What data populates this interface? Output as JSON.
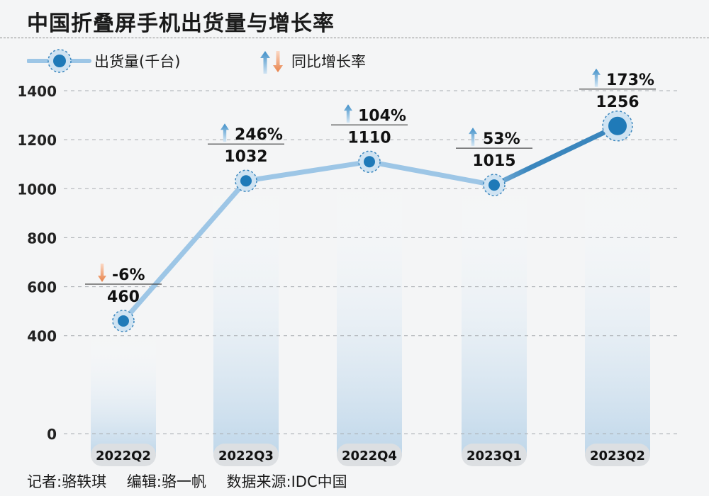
{
  "title": "中国折叠屏手机出货量与增长率",
  "legend": {
    "series_label": "出货量(千台)",
    "growth_label": "同比增长率"
  },
  "colors": {
    "line_light": "#9dc6e6",
    "line_dark": "#3a86bd",
    "dot": "#1f7ab8",
    "arrow_up": "#3f8fc8",
    "arrow_down": "#e8824a",
    "label_bg": "#dcdfe2"
  },
  "chart_data": {
    "type": "line",
    "categories": [
      "2022Q2",
      "2022Q3",
      "2022Q4",
      "2023Q1",
      "2023Q2"
    ],
    "series": [
      {
        "name": "出货量(千台)",
        "values": [
          460,
          1032,
          1110,
          1015,
          1256
        ]
      }
    ],
    "growth": [
      "-6%",
      "246%",
      "104%",
      "53%",
      "173%"
    ],
    "growth_direction": [
      "down",
      "up",
      "up",
      "up",
      "up"
    ],
    "ylim": [
      0,
      1400
    ],
    "yticks": [
      0,
      400,
      600,
      800,
      1000,
      1200,
      1400
    ],
    "grid": true,
    "legend_position": "top-left"
  },
  "credits": [
    "记者:骆轶琪",
    "编辑:骆一帆",
    "数据来源:IDC中国"
  ]
}
